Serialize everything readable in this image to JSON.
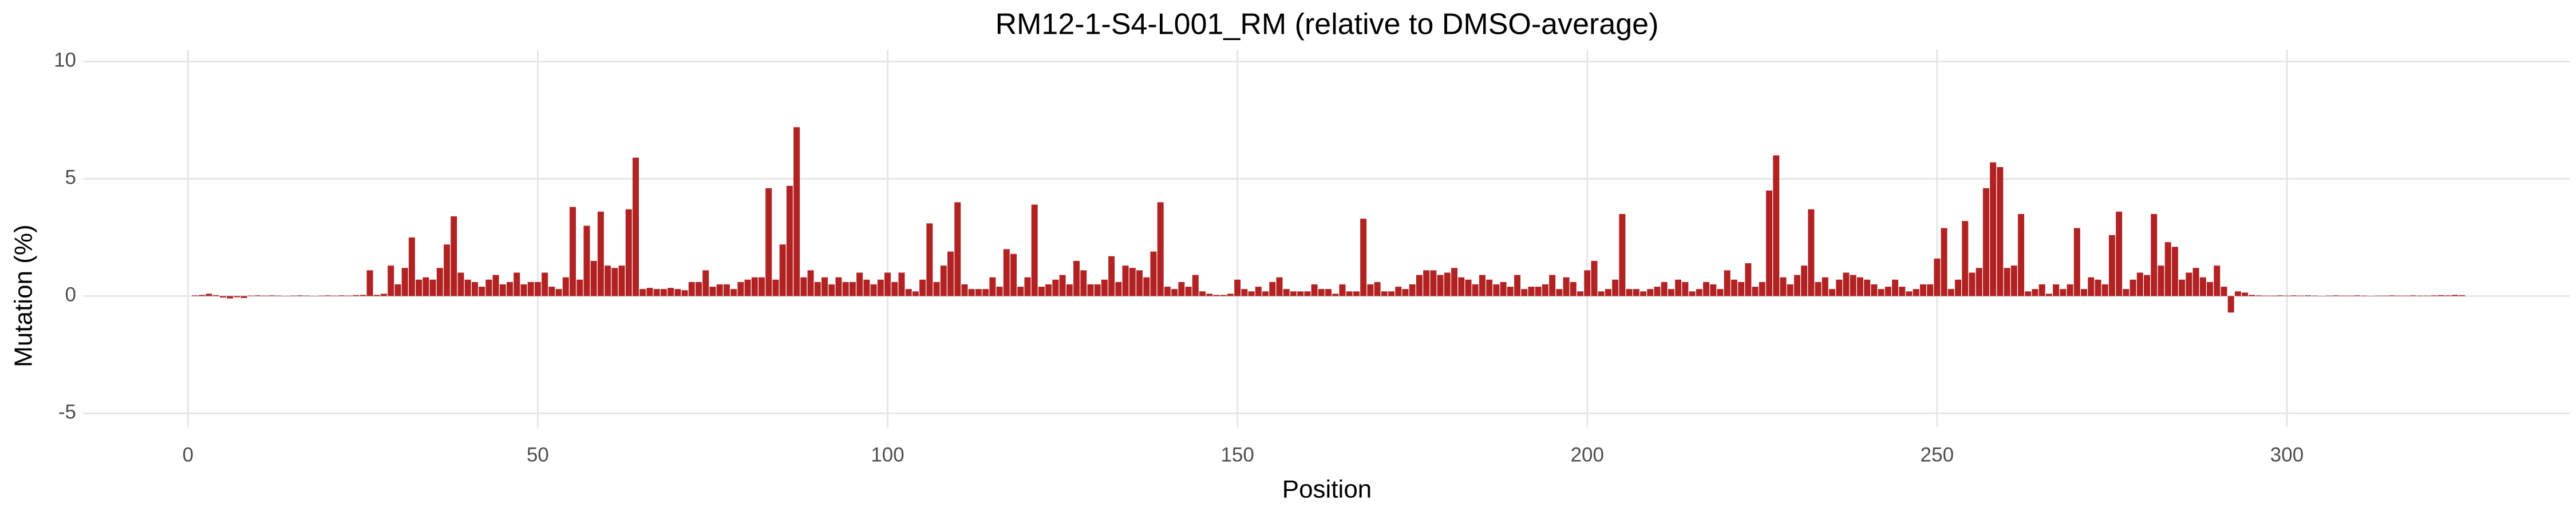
{
  "chart_data": {
    "type": "bar",
    "title": "RM12-1-S4-L001_RM (relative to DMSO-average)",
    "x_label": "Position",
    "y_label": "Mutation (%)",
    "color": "#b22222",
    "grid": true,
    "xlim": [
      -15,
      340.5
    ],
    "ylim": [
      -5.6,
      10.5
    ],
    "xticks": [
      0,
      50,
      100,
      150,
      200,
      250,
      300
    ],
    "yticks": [
      -5,
      0,
      5,
      10
    ],
    "x": [
      1,
      2,
      3,
      4,
      5,
      6,
      7,
      8,
      9,
      10,
      11,
      12,
      13,
      14,
      15,
      16,
      17,
      18,
      19,
      20,
      21,
      22,
      23,
      24,
      25,
      26,
      27,
      28,
      29,
      30,
      31,
      32,
      33,
      34,
      35,
      36,
      37,
      38,
      39,
      40,
      41,
      42,
      43,
      44,
      45,
      46,
      47,
      48,
      49,
      50,
      51,
      52,
      53,
      54,
      55,
      56,
      57,
      58,
      59,
      60,
      61,
      62,
      63,
      64,
      65,
      66,
      67,
      68,
      69,
      70,
      71,
      72,
      73,
      74,
      75,
      76,
      77,
      78,
      79,
      80,
      81,
      82,
      83,
      84,
      85,
      86,
      87,
      88,
      89,
      90,
      91,
      92,
      93,
      94,
      95,
      96,
      97,
      98,
      99,
      100,
      101,
      102,
      103,
      104,
      105,
      106,
      107,
      108,
      109,
      110,
      111,
      112,
      113,
      114,
      115,
      116,
      117,
      118,
      119,
      120,
      121,
      122,
      123,
      124,
      125,
      126,
      127,
      128,
      129,
      130,
      131,
      132,
      133,
      134,
      135,
      136,
      137,
      138,
      139,
      140,
      141,
      142,
      143,
      144,
      145,
      146,
      147,
      148,
      149,
      150,
      151,
      152,
      153,
      154,
      155,
      156,
      157,
      158,
      159,
      160,
      161,
      162,
      163,
      164,
      165,
      166,
      167,
      168,
      169,
      170,
      171,
      172,
      173,
      174,
      175,
      176,
      177,
      178,
      179,
      180,
      181,
      182,
      183,
      184,
      185,
      186,
      187,
      188,
      189,
      190,
      191,
      192,
      193,
      194,
      195,
      196,
      197,
      198,
      199,
      200,
      201,
      202,
      203,
      204,
      205,
      206,
      207,
      208,
      209,
      210,
      211,
      212,
      213,
      214,
      215,
      216,
      217,
      218,
      219,
      220,
      221,
      222,
      223,
      224,
      225,
      226,
      227,
      228,
      229,
      230,
      231,
      232,
      233,
      234,
      235,
      236,
      237,
      238,
      239,
      240,
      241,
      242,
      243,
      244,
      245,
      246,
      247,
      248,
      249,
      250,
      251,
      252,
      253,
      254,
      255,
      256,
      257,
      258,
      259,
      260,
      261,
      262,
      263,
      264,
      265,
      266,
      267,
      268,
      269,
      270,
      271,
      272,
      273,
      274,
      275,
      276,
      277,
      278,
      279,
      280,
      281,
      282,
      283,
      284,
      285,
      286,
      287,
      288,
      289,
      290,
      291,
      292,
      293,
      294,
      295,
      296,
      297,
      298,
      299,
      300,
      301,
      302,
      303,
      304,
      305,
      306,
      307,
      308,
      309,
      310,
      311,
      312,
      313,
      314,
      315,
      316,
      317,
      318,
      319,
      320,
      321,
      322,
      323,
      324,
      325
    ],
    "values": [
      0.03,
      0.05,
      0.1,
      0.04,
      -0.06,
      -0.1,
      -0.05,
      -0.08,
      0.02,
      0.03,
      0.02,
      0.03,
      0.02,
      0.01,
      0.02,
      0.03,
      0.02,
      0.01,
      0.02,
      0.03,
      0.02,
      0.03,
      0.02,
      0.04,
      0.05,
      1.1,
      0.05,
      0.1,
      1.3,
      0.5,
      1.2,
      2.5,
      0.7,
      0.8,
      0.7,
      1.2,
      2.2,
      3.4,
      1.0,
      0.7,
      0.6,
      0.4,
      0.7,
      0.9,
      0.5,
      0.6,
      1.0,
      0.5,
      0.6,
      0.6,
      1.0,
      0.4,
      0.3,
      0.8,
      3.8,
      0.7,
      3.0,
      1.5,
      3.6,
      1.3,
      1.2,
      1.3,
      3.7,
      5.9,
      0.3,
      0.35,
      0.3,
      0.3,
      0.35,
      0.3,
      0.25,
      0.6,
      0.6,
      1.1,
      0.4,
      0.5,
      0.5,
      0.3,
      0.6,
      0.7,
      0.8,
      0.8,
      4.6,
      0.7,
      2.2,
      4.7,
      7.2,
      0.8,
      1.1,
      0.6,
      0.8,
      0.5,
      0.8,
      0.6,
      0.6,
      1.0,
      0.7,
      0.5,
      0.7,
      1.0,
      0.6,
      1.0,
      0.3,
      0.2,
      0.7,
      3.1,
      0.6,
      1.3,
      1.9,
      4.0,
      0.5,
      0.3,
      0.3,
      0.3,
      0.8,
      0.4,
      2.0,
      1.8,
      0.4,
      0.8,
      3.9,
      0.4,
      0.5,
      0.7,
      0.9,
      0.5,
      1.5,
      1.1,
      0.5,
      0.5,
      0.7,
      1.7,
      0.6,
      1.3,
      1.2,
      1.1,
      0.8,
      1.9,
      4.0,
      0.4,
      0.3,
      0.6,
      0.4,
      0.9,
      0.2,
      0.1,
      0.05,
      0.05,
      0.1,
      0.7,
      0.3,
      0.2,
      0.4,
      0.2,
      0.6,
      0.8,
      0.3,
      0.2,
      0.2,
      0.2,
      0.5,
      0.3,
      0.3,
      0.1,
      0.5,
      0.2,
      0.2,
      3.3,
      0.5,
      0.6,
      0.2,
      0.2,
      0.4,
      0.3,
      0.5,
      0.9,
      1.1,
      1.1,
      0.9,
      1.0,
      1.2,
      0.8,
      0.7,
      0.5,
      0.9,
      0.7,
      0.5,
      0.6,
      0.4,
      0.9,
      0.3,
      0.4,
      0.4,
      0.5,
      0.9,
      0.3,
      0.8,
      0.6,
      0.2,
      1.1,
      1.5,
      0.2,
      0.3,
      0.7,
      3.5,
      0.3,
      0.3,
      0.2,
      0.3,
      0.4,
      0.6,
      0.3,
      0.7,
      0.6,
      0.2,
      0.3,
      0.6,
      0.5,
      0.3,
      1.1,
      0.7,
      0.6,
      1.4,
      0.4,
      0.6,
      4.5,
      6.0,
      0.8,
      0.5,
      0.9,
      1.3,
      3.7,
      0.6,
      0.8,
      0.3,
      0.7,
      1.0,
      0.9,
      0.8,
      0.7,
      0.5,
      0.3,
      0.4,
      0.7,
      0.4,
      0.2,
      0.3,
      0.5,
      0.5,
      1.6,
      2.9,
      0.3,
      0.7,
      3.2,
      1.0,
      1.2,
      4.6,
      5.7,
      5.5,
      1.2,
      1.3,
      3.5,
      0.2,
      0.3,
      0.5,
      0.1,
      0.5,
      0.3,
      0.5,
      2.9,
      0.3,
      0.8,
      0.7,
      0.5,
      2.6,
      3.6,
      0.3,
      0.7,
      1.0,
      0.9,
      3.5,
      1.3,
      2.3,
      2.1,
      0.7,
      1.0,
      1.2,
      0.8,
      0.6,
      1.3,
      0.4,
      -0.7,
      0.2,
      0.15,
      0.05,
      0.03,
      0.02,
      0.02,
      0.03,
      0.02,
      0.03,
      0.02,
      0.03,
      0.02,
      0.01,
      0.02,
      0.03,
      0.02,
      0.02,
      0.03,
      0.02,
      0.01,
      0.02,
      0.02,
      0.03,
      0.02,
      0.02,
      0.03,
      0.02,
      0.02,
      0.03,
      0.04,
      0.03,
      0.05,
      0.04
    ]
  }
}
